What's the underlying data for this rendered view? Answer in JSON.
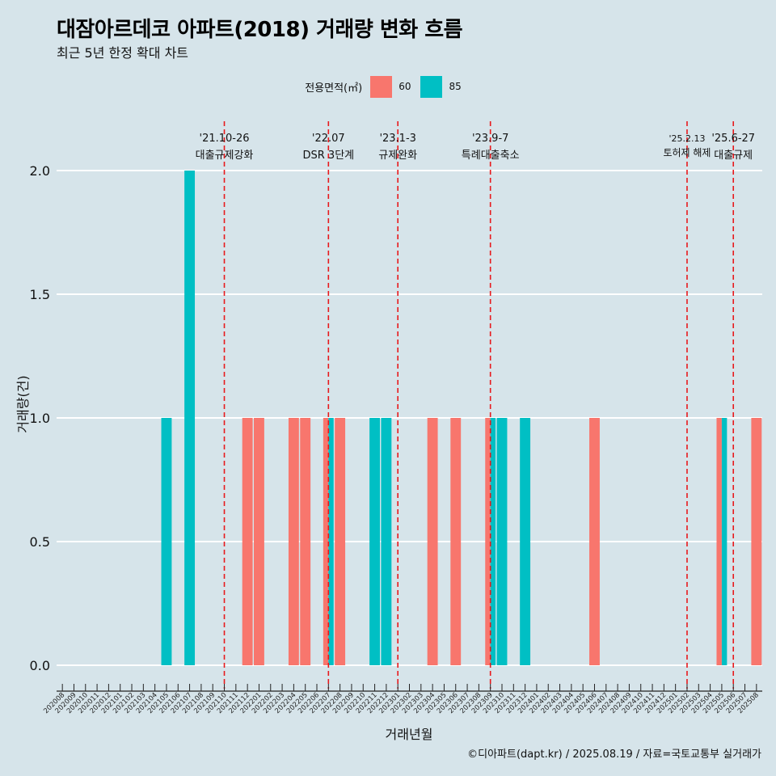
{
  "title": "대잠아르데코 아파트(2018) 거래량 변화 흐름",
  "subtitle": "최근 5년 한정 확대 차트",
  "legend": {
    "title": "전용면적(㎡)",
    "items": [
      {
        "label": "60",
        "color": "#f8766d"
      },
      {
        "label": "85",
        "color": "#00bfc4"
      }
    ]
  },
  "caption": "©디아파트(dapt.kr) / 2025.08.19 / 자료=국토교통부 실거래가",
  "chart_data": {
    "type": "bar",
    "title": "대잠아르데코 아파트(2018) 거래량 변화 흐름",
    "subtitle": "최근 5년 한정 확대 차트",
    "xlabel": "거래년월",
    "ylabel": "거래량(건)",
    "ylim": [
      0,
      2
    ],
    "yticks": [
      "0.0",
      "0.5",
      "1.0",
      "1.5",
      "2.0"
    ],
    "grid": "horizontal",
    "legend_position": "top",
    "categories": [
      "202008",
      "202009",
      "202010",
      "202011",
      "202012",
      "202101",
      "202102",
      "202103",
      "202104",
      "202105",
      "202106",
      "202107",
      "202108",
      "202109",
      "202110",
      "202111",
      "202112",
      "202201",
      "202202",
      "202203",
      "202204",
      "202205",
      "202206",
      "202207",
      "202208",
      "202209",
      "202210",
      "202211",
      "202212",
      "202301",
      "202302",
      "202303",
      "202304",
      "202305",
      "202306",
      "202307",
      "202308",
      "202309",
      "202310",
      "202311",
      "202312",
      "202401",
      "202402",
      "202403",
      "202404",
      "202405",
      "202406",
      "202407",
      "202408",
      "202409",
      "202410",
      "202411",
      "202412",
      "202501",
      "202502",
      "202503",
      "202504",
      "202505",
      "202506",
      "202507",
      "202508"
    ],
    "series": [
      {
        "name": "60",
        "color": "#f8766d",
        "values": [
          0,
          0,
          0,
          0,
          0,
          0,
          0,
          0,
          0,
          0,
          0,
          0,
          0,
          0,
          0,
          0,
          1,
          1,
          0,
          0,
          1,
          1,
          0,
          1,
          1,
          0,
          0,
          0,
          0,
          0,
          0,
          0,
          1,
          0,
          1,
          0,
          0,
          1,
          0,
          0,
          0,
          0,
          0,
          0,
          0,
          0,
          1,
          0,
          0,
          0,
          0,
          0,
          0,
          0,
          0,
          0,
          0,
          1,
          0,
          0,
          1
        ]
      },
      {
        "name": "85",
        "color": "#00bfc4",
        "values": [
          0,
          0,
          0,
          0,
          0,
          0,
          0,
          0,
          0,
          1,
          0,
          2,
          0,
          0,
          0,
          0,
          0,
          0,
          0,
          0,
          0,
          0,
          0,
          1,
          0,
          0,
          0,
          1,
          1,
          0,
          0,
          0,
          0,
          0,
          0,
          0,
          0,
          1,
          1,
          0,
          1,
          0,
          0,
          0,
          0,
          0,
          0,
          0,
          0,
          0,
          0,
          0,
          0,
          0,
          0,
          0,
          0,
          1,
          0,
          0,
          0
        ]
      }
    ],
    "annotations": [
      {
        "date_label": "'21.10-26",
        "text": "대출규제강화",
        "x": "202110"
      },
      {
        "date_label": "'22.07",
        "text": "DSR 3단계",
        "x": "202207"
      },
      {
        "date_label": "'23.1-3",
        "text": "규제완화",
        "x": "202301"
      },
      {
        "date_label": "'23.9-7",
        "text": "특례대출축소",
        "x": "202309"
      },
      {
        "date_label": "'25.2.13",
        "text": "토허제 해제",
        "x": "202502"
      },
      {
        "date_label": "'25.6-27",
        "text": "대출규제",
        "x": "202506"
      }
    ]
  }
}
